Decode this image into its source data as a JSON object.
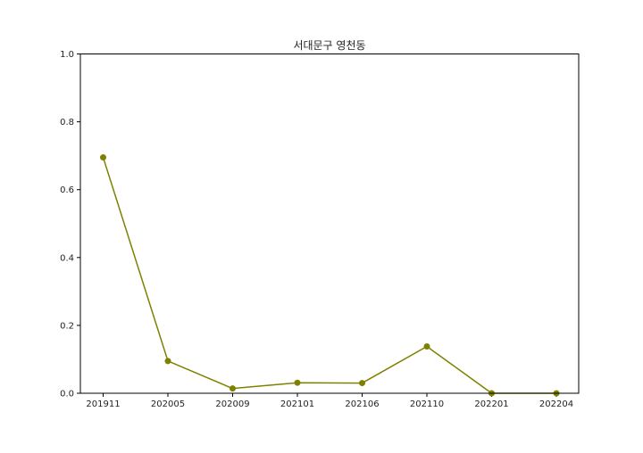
{
  "colors": {
    "series": "#808000",
    "axis": "#000000"
  },
  "chart_data": {
    "type": "line",
    "title": "서대문구 영천동",
    "xlabel": "",
    "ylabel": "",
    "categories": [
      "201911",
      "202005",
      "202009",
      "202101",
      "202106",
      "202110",
      "202201",
      "202204"
    ],
    "series": [
      {
        "values": [
          0.695,
          0.095,
          0.014,
          0.031,
          0.03,
          0.138,
          0.0,
          0.0
        ]
      }
    ],
    "ylim": [
      0,
      1.0
    ],
    "yticks": [
      0.0,
      0.2,
      0.4,
      0.6,
      0.8,
      1.0
    ],
    "ytick_labels": [
      "0.0",
      "0.2",
      "0.4",
      "0.6",
      "0.8",
      "1.0"
    ],
    "grid": false,
    "marker": "circle"
  }
}
